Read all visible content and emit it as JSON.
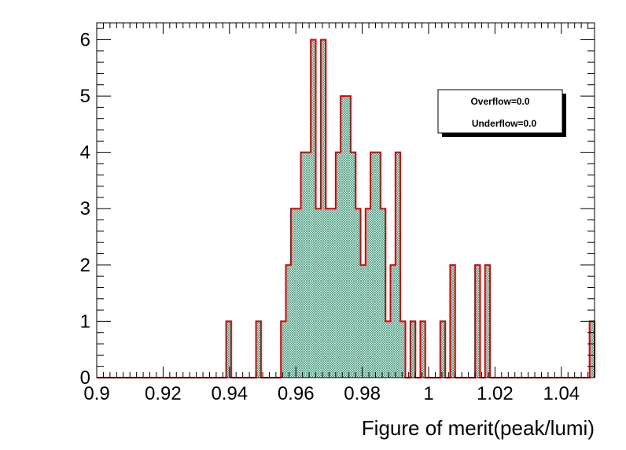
{
  "chart_data": {
    "type": "bar",
    "subtype": "histogram",
    "xlabel": "Figure of merit(peak/lumi)",
    "ylabel": "",
    "title": "",
    "xlim": [
      0.9,
      1.05
    ],
    "ylim": [
      0,
      6.3
    ],
    "x_ticks": [
      "0.9",
      "0.92",
      "0.94",
      "0.96",
      "0.98",
      "1",
      "1.02",
      "1.04"
    ],
    "y_ticks": [
      "0",
      "1",
      "2",
      "3",
      "4",
      "5",
      "6"
    ],
    "bin_edges": [
      0.9,
      1.05
    ],
    "bin_count": 100,
    "values": [
      0,
      0,
      0,
      0,
      0,
      0,
      0,
      0,
      0,
      0,
      0,
      0,
      0,
      0,
      0,
      0,
      0,
      0,
      0,
      0,
      0,
      0,
      0,
      0,
      0,
      0,
      1,
      0,
      0,
      0,
      0,
      0,
      1,
      0,
      0,
      0,
      0,
      1,
      2,
      3,
      3,
      4,
      4,
      6,
      3,
      6,
      3,
      3,
      4,
      5,
      5,
      4,
      3,
      2,
      3,
      4,
      4,
      3,
      1,
      2,
      4,
      1,
      0,
      1,
      0,
      1,
      0,
      0,
      0,
      1,
      0,
      2,
      0,
      0,
      0,
      0,
      2,
      0,
      2,
      0,
      0,
      0,
      0,
      0,
      0,
      0,
      0,
      0,
      0,
      0,
      0,
      0,
      0,
      0,
      0,
      0,
      0,
      0,
      0,
      1
    ],
    "grid": false,
    "legend": {
      "placement": "top-right",
      "entries": [
        "Overflow=0.0",
        "Underflow=0.0"
      ]
    },
    "colors": {
      "line": "#e00000",
      "fill": "#2f8f6f",
      "axis": "#000000"
    }
  }
}
